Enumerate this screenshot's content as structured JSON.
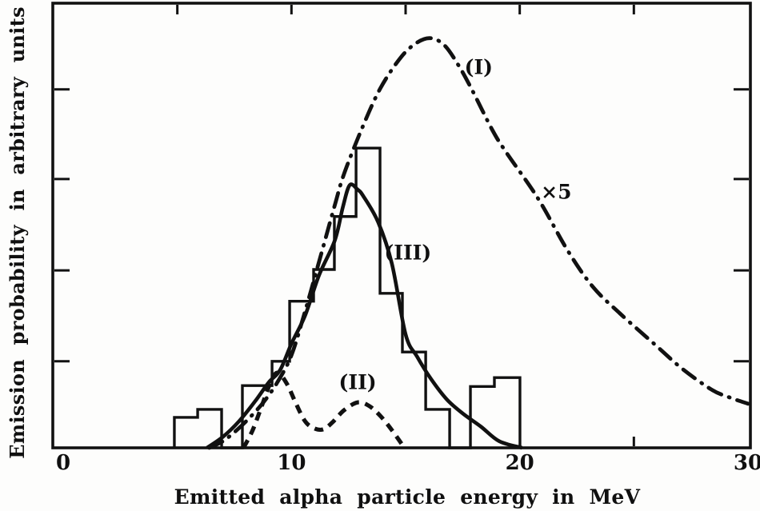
{
  "figure": {
    "background": "#fdfdfc",
    "ink_color": "#111111",
    "description": "Scanned journal figure: emission probability vs emitted alpha particle energy"
  },
  "chart_data": {
    "type": "line",
    "title": "",
    "xlabel": "Emitted alpha particle energy in MeV",
    "ylabel": "Emission probability in arbitrary units",
    "xlim": [
      0,
      30
    ],
    "ylim": [
      0,
      1
    ],
    "grid": false,
    "legend_position": "none",
    "x_ticks_labeled": [
      {
        "value": 0,
        "label": "0"
      },
      {
        "value": 10,
        "label": "10"
      },
      {
        "value": 20,
        "label": "20"
      },
      {
        "value": 30,
        "label": "30"
      }
    ],
    "x_minor_ticks_top": [
      5,
      10,
      15,
      20,
      25
    ],
    "x_minor_ticks_bottom": [
      25
    ],
    "y_minor_ticks": [
      0.196,
      0.402,
      0.609,
      0.812
    ],
    "series": [
      {
        "name": "(I)",
        "style": "dash-dot",
        "note": "shown magnified ×5",
        "points": [
          [
            6.4,
            0
          ],
          [
            7.0,
            0.015
          ],
          [
            7.6,
            0.04
          ],
          [
            8.2,
            0.07
          ],
          [
            8.8,
            0.105
          ],
          [
            9.4,
            0.15
          ],
          [
            10.0,
            0.21
          ],
          [
            10.6,
            0.31
          ],
          [
            11.2,
            0.42
          ],
          [
            11.9,
            0.55
          ],
          [
            12.3,
            0.62
          ],
          [
            13.1,
            0.725
          ],
          [
            13.9,
            0.815
          ],
          [
            14.8,
            0.885
          ],
          [
            15.5,
            0.918
          ],
          [
            16.1,
            0.928
          ],
          [
            16.7,
            0.912
          ],
          [
            17.3,
            0.868
          ],
          [
            17.9,
            0.812
          ],
          [
            18.8,
            0.72
          ],
          [
            19.4,
            0.67
          ],
          [
            20.8,
            0.565
          ],
          [
            22.1,
            0.447
          ],
          [
            23.2,
            0.365
          ],
          [
            24.4,
            0.304
          ],
          [
            25.9,
            0.235
          ],
          [
            27.1,
            0.18
          ],
          [
            28.4,
            0.132
          ],
          [
            29.2,
            0.114
          ],
          [
            30.0,
            0.1
          ]
        ]
      },
      {
        "name": "(II)",
        "style": "dashed",
        "points": [
          [
            7.9,
            0
          ],
          [
            8.3,
            0.04
          ],
          [
            8.7,
            0.095
          ],
          [
            9.1,
            0.15
          ],
          [
            9.4,
            0.17
          ],
          [
            9.8,
            0.145
          ],
          [
            10.2,
            0.1
          ],
          [
            10.6,
            0.06
          ],
          [
            11.0,
            0.044
          ],
          [
            11.4,
            0.042
          ],
          [
            11.8,
            0.058
          ],
          [
            12.3,
            0.085
          ],
          [
            12.9,
            0.103
          ],
          [
            13.4,
            0.095
          ],
          [
            13.9,
            0.072
          ],
          [
            14.4,
            0.04
          ],
          [
            14.95,
            0
          ]
        ]
      },
      {
        "name": "(III)",
        "style": "solid",
        "points": [
          [
            6.3,
            0
          ],
          [
            7.0,
            0.025
          ],
          [
            7.7,
            0.06
          ],
          [
            8.4,
            0.105
          ],
          [
            9.0,
            0.148
          ],
          [
            9.5,
            0.176
          ],
          [
            10.0,
            0.236
          ],
          [
            10.6,
            0.3
          ],
          [
            11.2,
            0.39
          ],
          [
            11.9,
            0.47
          ],
          [
            12.25,
            0.545
          ],
          [
            12.55,
            0.595
          ],
          [
            12.9,
            0.585
          ],
          [
            13.15,
            0.57
          ],
          [
            13.8,
            0.511
          ],
          [
            14.4,
            0.417
          ],
          [
            15.0,
            0.257
          ],
          [
            15.5,
            0.207
          ],
          [
            16.1,
            0.157
          ],
          [
            16.8,
            0.11
          ],
          [
            17.5,
            0.078
          ],
          [
            18.3,
            0.048
          ],
          [
            19.1,
            0.015
          ],
          [
            20.1,
            0
          ]
        ]
      }
    ],
    "histogram": {
      "name": "experimental histogram",
      "bin_edges_mev": [
        4.87,
        5.89,
        6.94,
        7.85,
        9.15,
        9.92,
        10.97,
        11.88,
        12.83,
        13.88,
        14.86,
        15.88,
        16.93,
        17.84,
        18.89,
        20.01
      ],
      "values": [
        0.069,
        0.087,
        0,
        0.141,
        0.196,
        0.332,
        0.404,
        0.524,
        0.679,
        0.35,
        0.217,
        0.087,
        0,
        0.139,
        0.159
      ]
    },
    "annotations": [
      {
        "text": "(I)",
        "x": 18.2,
        "y": 0.859
      },
      {
        "text": "×5",
        "x": 21.6,
        "y": 0.576
      },
      {
        "text": "(III)",
        "x": 15.1,
        "y": 0.438
      },
      {
        "text": "(II)",
        "x": 12.9,
        "y": 0.145
      }
    ]
  }
}
